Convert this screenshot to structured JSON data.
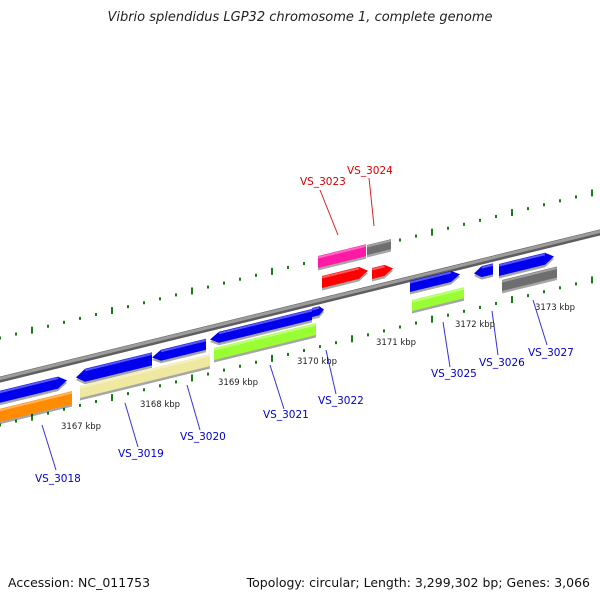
{
  "title": "Vibrio splendidus LGP32 chromosome 1, complete genome",
  "footer": {
    "accession": "Accession: NC_011753",
    "stats": "Topology: circular; Length: 3,299,302 bp; Genes: 3,066"
  },
  "colors": {
    "backbone": "#8a8a8a",
    "tick_green": "#1a7a1a",
    "label_blue": "#0000cc",
    "label_red": "#dd0000",
    "leader_blue": "#3333dd",
    "leader_red": "#dd2222"
  },
  "scale_ticks": [
    {
      "label": "3167 kbp"
    },
    {
      "label": "3168 kbp"
    },
    {
      "label": "3169 kbp"
    },
    {
      "label": "3170 kbp"
    },
    {
      "label": "3171 kbp"
    },
    {
      "label": "3172 kbp"
    },
    {
      "label": "3173 kbp"
    }
  ],
  "gene_labels": [
    {
      "id": "VS_3018",
      "color": "blue"
    },
    {
      "id": "VS_3019",
      "color": "blue"
    },
    {
      "id": "VS_3020",
      "color": "blue"
    },
    {
      "id": "VS_3021",
      "color": "blue"
    },
    {
      "id": "VS_3022",
      "color": "blue"
    },
    {
      "id": "VS_3023",
      "color": "red"
    },
    {
      "id": "VS_3024",
      "color": "red"
    },
    {
      "id": "VS_3025",
      "color": "blue"
    },
    {
      "id": "VS_3026",
      "color": "blue"
    },
    {
      "id": "VS_3027",
      "color": "blue"
    }
  ]
}
